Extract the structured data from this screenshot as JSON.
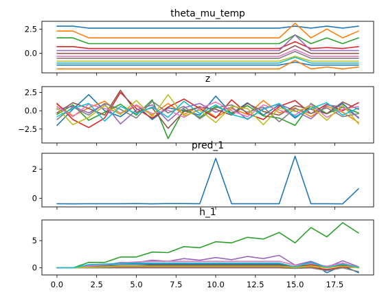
{
  "colors": [
    "#1f77b4",
    "#ff7f0e",
    "#2ca02c",
    "#d62728",
    "#9467bd",
    "#8c564b",
    "#e377c2",
    "#7f7f7f",
    "#bcbd22",
    "#17becf"
  ],
  "chart_data": [
    {
      "type": "line",
      "title": "theta_mu_temp",
      "xlim": [
        -0.95,
        19.95
      ],
      "ylim": [
        -2.0,
        3.3
      ],
      "xticks": [
        0,
        2.5,
        5,
        7.5,
        10,
        12.5,
        15,
        17.5
      ],
      "xtick_labels": [],
      "yticks": [
        -0.0,
        2.5
      ],
      "ytick_labels": [
        "0.0",
        "2.5"
      ],
      "x": [
        0,
        1,
        2,
        3,
        4,
        5,
        6,
        7,
        8,
        9,
        10,
        11,
        12,
        13,
        14,
        15,
        16,
        17,
        18,
        19
      ],
      "series": [
        {
          "values": [
            2.8,
            2.8,
            2.6,
            2.6,
            2.6,
            2.6,
            2.6,
            2.6,
            2.6,
            2.6,
            2.6,
            2.6,
            2.6,
            2.6,
            2.6,
            2.8,
            2.6,
            2.8,
            2.6,
            2.8
          ]
        },
        {
          "values": [
            2.3,
            2.3,
            1.6,
            1.6,
            1.6,
            1.6,
            1.6,
            1.6,
            1.6,
            1.6,
            1.6,
            1.6,
            1.6,
            1.6,
            1.6,
            3.1,
            1.6,
            2.5,
            1.6,
            2.3
          ]
        },
        {
          "values": [
            1.6,
            1.6,
            1.0,
            1.0,
            1.0,
            1.0,
            1.0,
            1.0,
            1.0,
            1.0,
            1.0,
            1.0,
            1.0,
            1.0,
            1.0,
            1.9,
            1.0,
            1.6,
            1.0,
            1.6
          ]
        },
        {
          "values": [
            0.7,
            0.7,
            0.5,
            0.5,
            0.5,
            0.5,
            0.5,
            0.5,
            0.5,
            0.5,
            0.5,
            0.5,
            0.5,
            0.5,
            0.5,
            1.2,
            0.5,
            0.6,
            0.5,
            0.7
          ]
        },
        {
          "values": [
            0.3,
            0.3,
            0.3,
            0.3,
            0.3,
            0.3,
            0.3,
            0.3,
            0.3,
            0.3,
            0.3,
            0.3,
            0.3,
            0.3,
            0.3,
            1.9,
            0.3,
            0.3,
            0.3,
            0.3
          ]
        },
        {
          "values": [
            0.0,
            0.0,
            0.0,
            0.0,
            0.0,
            0.0,
            0.0,
            0.0,
            0.0,
            0.0,
            0.0,
            0.0,
            0.0,
            0.0,
            0.0,
            0.8,
            0.0,
            0.0,
            0.0,
            0.0
          ]
        },
        {
          "values": [
            -0.3,
            -0.3,
            -0.3,
            -0.3,
            -0.3,
            -0.3,
            -0.3,
            -0.3,
            -0.3,
            -0.3,
            -0.3,
            -0.3,
            -0.3,
            -0.3,
            -0.3,
            0.4,
            -0.3,
            -0.3,
            -0.3,
            -0.3
          ]
        },
        {
          "values": [
            -0.5,
            -0.5,
            -0.5,
            -0.5,
            -0.5,
            -0.5,
            -0.5,
            -0.5,
            -0.5,
            -0.5,
            -0.5,
            -0.5,
            -0.5,
            -0.5,
            -0.5,
            0.2,
            -0.5,
            -0.5,
            -0.5,
            -0.5
          ]
        },
        {
          "values": [
            -0.8,
            -0.8,
            -0.8,
            -0.8,
            -0.8,
            -0.8,
            -0.8,
            -0.8,
            -0.8,
            -0.8,
            -0.8,
            -0.8,
            -0.8,
            -0.8,
            -0.8,
            -0.3,
            -0.8,
            -0.8,
            -0.8,
            -0.8
          ]
        },
        {
          "values": [
            -1.0,
            -1.0,
            -1.0,
            -1.0,
            -1.0,
            -1.0,
            -1.0,
            -1.0,
            -1.0,
            -1.0,
            -1.0,
            -1.0,
            -1.0,
            -1.0,
            -1.0,
            -0.4,
            -1.0,
            -1.0,
            -1.0,
            -1.0
          ]
        },
        {
          "values": [
            -1.2,
            -1.2,
            -1.2,
            -1.2,
            -1.2,
            -1.2,
            -1.2,
            -1.2,
            -1.2,
            -1.2,
            -1.2,
            -1.2,
            -1.2,
            -1.2,
            -1.2,
            -0.9,
            -1.2,
            -1.2,
            -1.2,
            -1.2
          ]
        },
        {
          "values": [
            -1.6,
            -1.6,
            -1.6,
            -1.6,
            -1.6,
            -1.6,
            -1.6,
            -1.6,
            -1.6,
            -1.6,
            -1.6,
            -1.6,
            -1.6,
            -1.6,
            -1.6,
            -0.7,
            -1.6,
            -1.4,
            -1.6,
            -1.4
          ]
        }
      ]
    },
    {
      "type": "line",
      "title": "z",
      "xlim": [
        -0.95,
        19.95
      ],
      "ylim": [
        -4.4,
        3.3
      ],
      "xticks": [
        0,
        2.5,
        5,
        7.5,
        10,
        12.5,
        15,
        17.5
      ],
      "xtick_labels": [],
      "yticks": [
        -2.5,
        0.0,
        2.5
      ],
      "ytick_labels": [
        "−2.5",
        "0.0",
        "2.5"
      ],
      "x": [
        0,
        1,
        2,
        3,
        4,
        5,
        6,
        7,
        8,
        9,
        10,
        11,
        12,
        13,
        14,
        15,
        16,
        17,
        18,
        19
      ],
      "series": [
        {
          "values": [
            -2.0,
            0.2,
            2.2,
            0.0,
            -0.8,
            0.8,
            -1.2,
            0.4,
            0.0,
            -0.6,
            2.0,
            -0.4,
            1.1,
            -0.6,
            0.8,
            -1.0,
            0.6,
            -0.4,
            1.0,
            -1.0
          ]
        },
        {
          "values": [
            0.9,
            -0.7,
            0.4,
            1.3,
            -0.4,
            0.7,
            -0.6,
            1.0,
            -0.5,
            0.6,
            -0.9,
            0.3,
            -0.5,
            1.4,
            -0.3,
            0.4,
            -0.8,
            0.6,
            -0.2,
            -1.6
          ]
        },
        {
          "values": [
            -0.5,
            0.8,
            -1.3,
            -0.2,
            0.9,
            -0.6,
            1.5,
            -3.8,
            0.2,
            -0.9,
            0.6,
            -0.3,
            0.7,
            -0.7,
            -1.0,
            -2.0,
            1.0,
            -0.4,
            0.5,
            -0.3
          ]
        },
        {
          "values": [
            1.0,
            -1.2,
            -2.3,
            -1.0,
            2.5,
            0.3,
            -1.0,
            0.5,
            1.6,
            0.3,
            -1.0,
            1.5,
            -0.4,
            -1.2,
            0.6,
            1.4,
            -0.4,
            0.9,
            0.0,
            1.1
          ]
        },
        {
          "values": [
            0.2,
            0.6,
            -0.3,
            0.9,
            -1.8,
            0.1,
            0.8,
            -1.4,
            0.4,
            1.0,
            -0.2,
            0.5,
            -1.2,
            0.3,
            0.9,
            0.0,
            -1.1,
            0.8,
            0.5,
            -0.9
          ]
        },
        {
          "values": [
            -0.3,
            1.1,
            0.3,
            -0.6,
            2.8,
            -0.2,
            0.4,
            -2.4,
            -0.1,
            0.5,
            0.2,
            -0.6,
            1.0,
            -0.1,
            -0.6,
            0.7,
            0.2,
            -0.4,
            1.2,
            0.2
          ]
        },
        {
          "values": [
            0.6,
            -0.8,
            0.9,
            0.3,
            -0.3,
            0.8,
            -0.4,
            0.1,
            -0.9,
            0.3,
            1.2,
            0.0,
            -0.8,
            0.8,
            0.1,
            -0.6,
            0.9,
            -0.9,
            0.2,
            0.6
          ]
        },
        {
          "values": [
            -1.2,
            0.5,
            -0.6,
            1.0,
            0.2,
            -1.0,
            1.3,
            -0.3,
            0.6,
            -1.1,
            0.4,
            0.8,
            -0.2,
            0.5,
            -1.5,
            0.3,
            -0.4,
            0.4,
            -0.8,
            -0.4
          ]
        },
        {
          "values": [
            0.4,
            -1.9,
            -0.9,
            0.7,
            -0.5,
            1.4,
            -0.8,
            2.2,
            -0.7,
            0.1,
            -1.6,
            0.6,
            0.3,
            -1.9,
            0.4,
            -0.1,
            0.6,
            -1.3,
            0.8,
            -1.8
          ]
        },
        {
          "values": [
            -0.8,
            0.3,
            1.0,
            -1.4,
            0.6,
            -0.4,
            0.5,
            -0.9,
            1.3,
            -0.4,
            0.8,
            -0.5,
            -1.1,
            0.2,
            1.0,
            -0.8,
            0.3,
            1.1,
            -0.6,
            0.4
          ]
        }
      ]
    },
    {
      "type": "line",
      "title": "pred_1",
      "xlim": [
        -0.95,
        19.95
      ],
      "ylim": [
        -0.6,
        3.1
      ],
      "xticks": [
        0,
        2.5,
        5,
        7.5,
        10,
        12.5,
        15,
        17.5
      ],
      "xtick_labels": [],
      "yticks": [
        0,
        2
      ],
      "ytick_labels": [
        "0",
        "2"
      ],
      "x": [
        0,
        1,
        2,
        3,
        4,
        5,
        6,
        7,
        8,
        9,
        10,
        11,
        12,
        13,
        14,
        15,
        16,
        17,
        18,
        19
      ],
      "series": [
        {
          "values": [
            -0.38,
            -0.39,
            -0.38,
            -0.38,
            -0.38,
            -0.37,
            -0.39,
            -0.37,
            -0.37,
            -0.38,
            2.75,
            -0.38,
            -0.38,
            -0.38,
            -0.38,
            2.9,
            -0.38,
            -0.38,
            -0.39,
            0.65
          ]
        }
      ]
    },
    {
      "type": "line",
      "title": "h_1",
      "xlim": [
        -0.95,
        19.95
      ],
      "ylim": [
        -1.3,
        8.8
      ],
      "xticks": [
        0,
        2.5,
        5,
        7.5,
        10,
        12.5,
        15,
        17.5
      ],
      "xtick_labels": [
        "0.0",
        "2.5",
        "5.0",
        "7.5",
        "10.0",
        "12.5",
        "15.0",
        "17.5"
      ],
      "yticks": [
        0,
        5
      ],
      "ytick_labels": [
        "0",
        "5"
      ],
      "x": [
        0,
        1,
        2,
        3,
        4,
        5,
        6,
        7,
        8,
        9,
        10,
        11,
        12,
        13,
        14,
        15,
        16,
        17,
        18,
        19
      ],
      "series": [
        {
          "values": [
            0,
            0,
            0.3,
            0.5,
            0.7,
            0.7,
            0.7,
            0.7,
            0.7,
            0.7,
            0.7,
            0.7,
            0.7,
            0.7,
            0.7,
            0.2,
            1.1,
            -0.9,
            0.4,
            -0.9
          ]
        },
        {
          "values": [
            0,
            0,
            0.2,
            0.3,
            0.4,
            0.4,
            0.4,
            0.4,
            0.4,
            0.4,
            0.4,
            0.4,
            0.4,
            0.4,
            0.4,
            0.3,
            0.4,
            0.2,
            0.5,
            0.0
          ]
        },
        {
          "values": [
            0,
            0,
            1.0,
            1.0,
            2.0,
            2.0,
            2.9,
            2.8,
            3.9,
            3.7,
            4.8,
            4.6,
            5.6,
            5.3,
            6.5,
            4.6,
            7.4,
            5.7,
            8.3,
            6.4
          ]
        },
        {
          "values": [
            0,
            0,
            0.1,
            0.1,
            0.1,
            0.1,
            0.1,
            0.1,
            0.1,
            0.1,
            0.1,
            0.1,
            0.1,
            0.1,
            0.1,
            0.1,
            0.1,
            -0.3,
            0.1,
            0.1
          ]
        },
        {
          "values": [
            0,
            0,
            0.5,
            0.5,
            1.0,
            1.0,
            1.4,
            1.2,
            1.7,
            1.4,
            1.9,
            1.5,
            2.1,
            1.7,
            2.3,
            0.5,
            1.2,
            0.1,
            1.3,
            0.2
          ]
        },
        {
          "values": [
            0,
            0,
            0.2,
            0.3,
            0.4,
            0.4,
            0.5,
            0.5,
            0.5,
            0.5,
            0.5,
            0.5,
            0.5,
            0.5,
            0.5,
            0.2,
            0.6,
            0.2,
            0.5,
            0.0
          ]
        },
        {
          "values": [
            0,
            0,
            0.3,
            0.6,
            0.9,
            1.1,
            1.2,
            1.2,
            1.2,
            1.2,
            1.2,
            1.2,
            1.2,
            1.2,
            1.2,
            0.5,
            0.8,
            0.3,
            0.9,
            0.1
          ]
        },
        {
          "values": [
            0,
            0,
            0.0,
            0.0,
            0.0,
            0.0,
            0.0,
            0.0,
            0.0,
            0.0,
            0.0,
            0.0,
            0.0,
            0.0,
            0.0,
            -0.1,
            0.0,
            -0.5,
            0.0,
            -0.7
          ]
        },
        {
          "values": [
            0,
            0,
            0.1,
            0.2,
            0.3,
            0.3,
            0.3,
            0.3,
            0.3,
            0.3,
            0.3,
            0.3,
            0.3,
            0.3,
            0.3,
            0.1,
            0.3,
            0.0,
            0.3,
            0.0
          ]
        },
        {
          "values": [
            0,
            0,
            0.6,
            0.7,
            0.8,
            0.9,
            0.9,
            0.9,
            0.9,
            0.9,
            0.9,
            0.9,
            0.9,
            0.9,
            0.9,
            0.2,
            1.0,
            0.1,
            0.7,
            0.1
          ]
        }
      ]
    }
  ]
}
